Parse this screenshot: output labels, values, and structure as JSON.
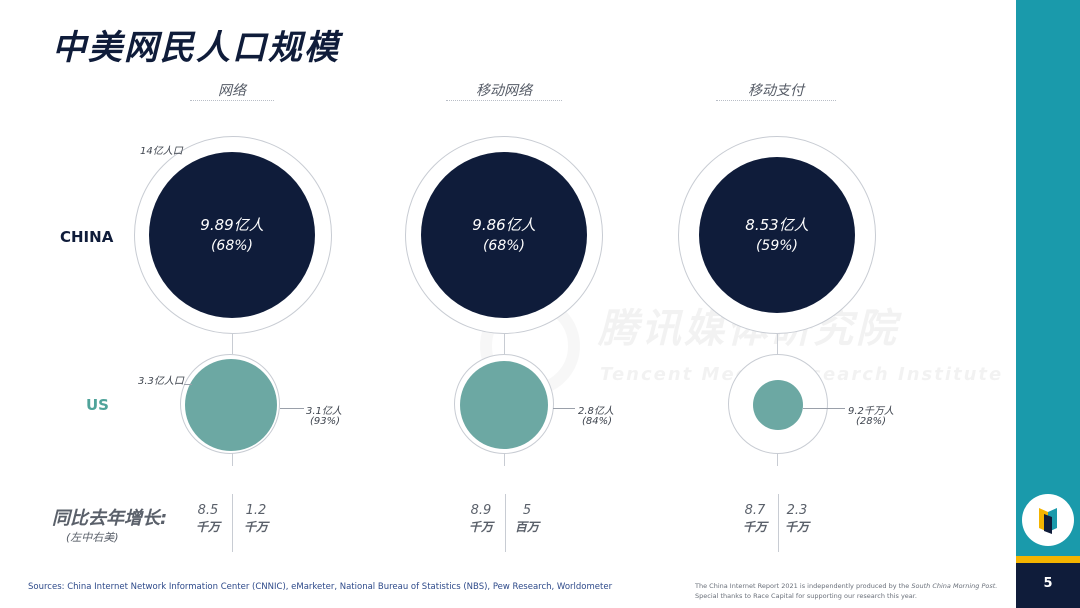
{
  "title": "中美网民人口规模",
  "columns": [
    {
      "label": "网络"
    },
    {
      "label": "移动网络"
    },
    {
      "label": "移动支付"
    }
  ],
  "rows": {
    "china": "CHINA",
    "us": "US"
  },
  "population_labels": {
    "china": "14亿人口",
    "us": "3.3亿人口"
  },
  "chart_data": {
    "type": "bubble",
    "categories": [
      "网络",
      "移动网络",
      "移动支付"
    ],
    "series": [
      {
        "name": "CHINA",
        "value_labels": [
          "9.89亿人",
          "9.86亿人",
          "8.53亿人"
        ],
        "pct_labels": [
          "(68%)",
          "(68%)",
          "(59%)"
        ],
        "values": [
          9.89,
          9.86,
          8.53
        ],
        "unit": "亿人",
        "percents": [
          68,
          68,
          59
        ],
        "total": 14
      },
      {
        "name": "US",
        "value_labels": [
          "3.1亿人",
          "2.8亿人",
          "9.2千万人"
        ],
        "pct_labels": [
          "(93%)",
          "(84%)",
          "(28%)"
        ],
        "values": [
          3.1,
          2.8,
          0.92
        ],
        "unit": "亿人",
        "percents": [
          93,
          84,
          28
        ],
        "total": 3.3
      }
    ]
  },
  "growth": {
    "title": "同比去年增长:",
    "subtitle": "(左中右美)",
    "items": [
      {
        "cn_num": "8.5",
        "cn_unit": "千万",
        "us_num": "1.2",
        "us_unit": "千万"
      },
      {
        "cn_num": "8.9",
        "cn_unit": "千万",
        "us_num": "5",
        "us_unit": "百万"
      },
      {
        "cn_num": "8.7",
        "cn_unit": "千万",
        "us_num": "2.3",
        "us_unit": "千万"
      }
    ]
  },
  "watermark": {
    "cn": "腾讯媒体研究院",
    "en": "Tencent Media Research Institute"
  },
  "footer": {
    "sources": "Sources: China Internet Network Information Center (CNNIC), eMarketer, National Bureau of Statistics (NBS), Pew Research, Worldometer",
    "credit_line1_a": "The China Internet Report 2021 is independently produced by the ",
    "credit_line1_b": "South China Morning Post.",
    "credit_line2": "Special thanks to Race Capital for supporting our research this year."
  },
  "page_number": "5",
  "colors": {
    "navy": "#0f1c3a",
    "teal": "#6ca8a3",
    "sidebar": "#1a9aab",
    "accent": "#f4b400"
  }
}
